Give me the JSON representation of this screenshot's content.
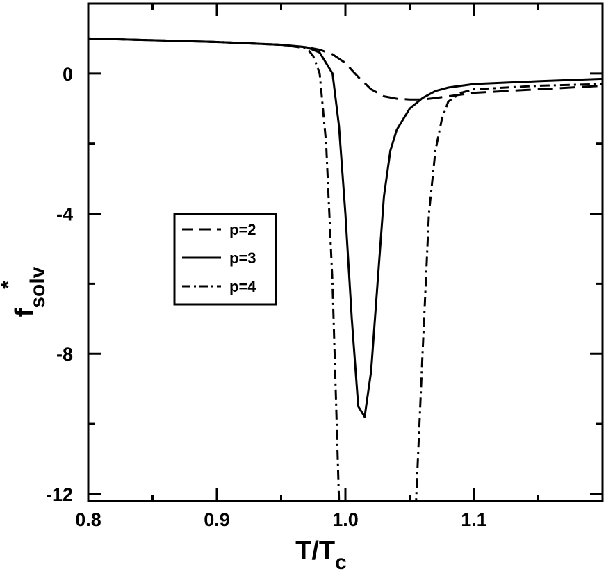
{
  "chart_data": {
    "type": "line",
    "title": "",
    "xlabel": {
      "main": "T/T",
      "sub": "c"
    },
    "ylabel": {
      "main": "f",
      "sup": "*",
      "sub": "solv"
    },
    "xlim": [
      0.8,
      1.2
    ],
    "ylim": [
      -12.2,
      2.0
    ],
    "x_ticks": [
      0.8,
      0.9,
      1.0,
      1.1
    ],
    "x_tick_labels": [
      "0.8",
      "0.9",
      "1.0",
      "1.1"
    ],
    "y_ticks": [
      0,
      -4,
      -8,
      -12
    ],
    "y_tick_labels": [
      "0",
      "-4",
      "-8",
      "-12"
    ],
    "grid": false,
    "legend_position": "center-left",
    "series": [
      {
        "name": "p=2",
        "style": "dashed",
        "x": [
          0.8,
          0.85,
          0.9,
          0.95,
          0.97,
          0.98,
          0.99,
          1.0,
          1.01,
          1.02,
          1.03,
          1.04,
          1.05,
          1.06,
          1.07,
          1.08,
          1.1,
          1.15,
          1.2
        ],
        "y": [
          1.0,
          0.95,
          0.9,
          0.82,
          0.75,
          0.68,
          0.55,
          0.3,
          -0.1,
          -0.45,
          -0.65,
          -0.72,
          -0.74,
          -0.74,
          -0.7,
          -0.65,
          -0.55,
          -0.45,
          -0.35
        ]
      },
      {
        "name": "p=3",
        "style": "solid",
        "x": [
          0.8,
          0.85,
          0.9,
          0.95,
          0.97,
          0.98,
          0.99,
          0.995,
          1.0,
          1.005,
          1.01,
          1.015,
          1.02,
          1.025,
          1.03,
          1.035,
          1.04,
          1.05,
          1.06,
          1.07,
          1.08,
          1.1,
          1.15,
          1.2
        ],
        "y": [
          1.0,
          0.95,
          0.9,
          0.82,
          0.75,
          0.6,
          0.0,
          -1.5,
          -4.0,
          -7.0,
          -9.5,
          -9.8,
          -8.5,
          -6.0,
          -3.5,
          -2.2,
          -1.6,
          -1.0,
          -0.7,
          -0.5,
          -0.4,
          -0.3,
          -0.22,
          -0.15
        ]
      },
      {
        "name": "p=4",
        "style": "dashdot",
        "x": [
          0.8,
          0.85,
          0.9,
          0.95,
          0.97,
          0.975,
          0.98,
          0.985,
          0.99,
          0.995,
          1.055,
          1.06,
          1.065,
          1.07,
          1.075,
          1.08,
          1.09,
          1.1,
          1.15,
          1.2
        ],
        "y": [
          1.0,
          0.95,
          0.9,
          0.82,
          0.72,
          0.5,
          0.0,
          -2.0,
          -6.0,
          -12.2,
          -12.2,
          -8.0,
          -4.0,
          -2.2,
          -1.3,
          -0.8,
          -0.55,
          -0.45,
          -0.35,
          -0.3
        ]
      }
    ]
  }
}
